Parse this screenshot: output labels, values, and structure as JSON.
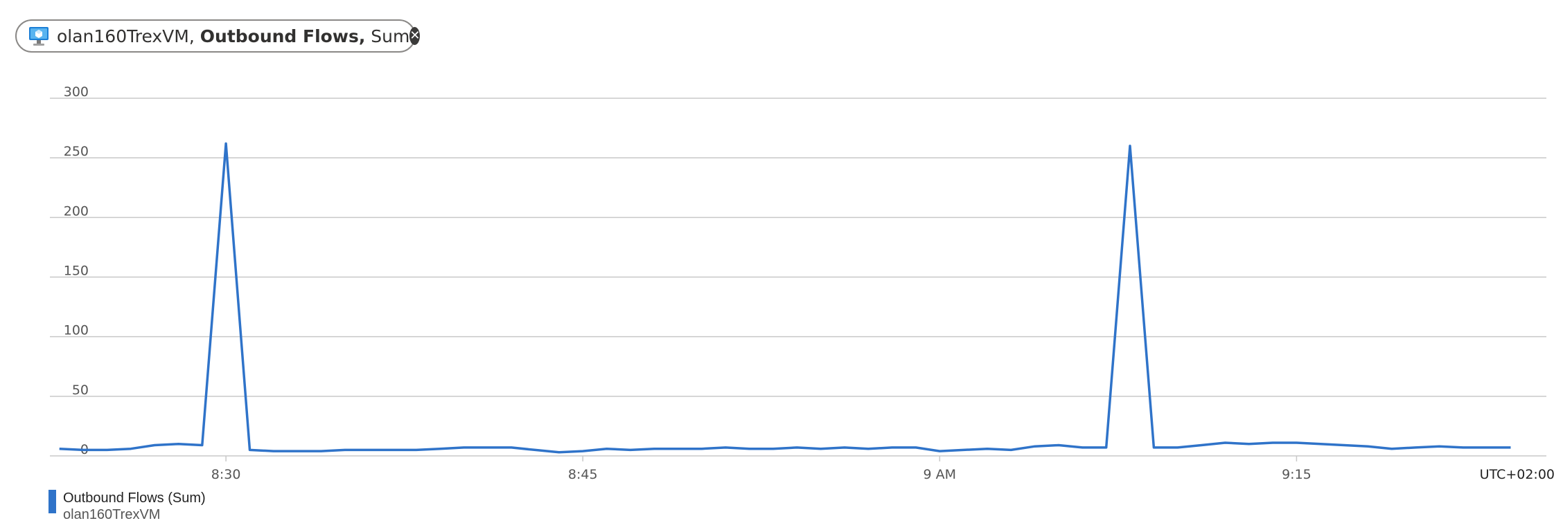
{
  "pill": {
    "resource": "olan160TrexVM,",
    "metric": "Outbound Flows,",
    "aggregation": "Sum",
    "icon": "virtual-machine-icon",
    "close_icon": "close-icon"
  },
  "timezone": "UTC+02:00",
  "legend": {
    "label": "Outbound Flows (Sum)",
    "sublabel": "olan160TrexVM"
  },
  "colors": {
    "series": "#2f73c9",
    "grid": "#c8c8c8",
    "axis_text": "#555555"
  },
  "chart_data": {
    "type": "line",
    "y_ticks": [
      "0",
      "50",
      "100",
      "150",
      "200",
      "250",
      "300"
    ],
    "ylim": [
      0,
      300
    ],
    "x_ticks": [
      {
        "label": "8:30",
        "minute": 30
      },
      {
        "label": "8:45",
        "minute": 45
      },
      {
        "label": "9 AM",
        "minute": 60
      },
      {
        "label": "9:15",
        "minute": 75
      }
    ],
    "x_minutes_range": [
      22.6,
      85.5
    ],
    "grid": true,
    "legend_position": "bottom-left",
    "series": [
      {
        "name": "Outbound Flows (Sum)",
        "x_minutes": [
          23,
          24,
          25,
          26,
          27,
          28,
          29,
          30,
          31,
          32,
          33,
          34,
          35,
          36,
          37,
          38,
          39,
          40,
          41,
          42,
          43,
          44,
          45,
          46,
          47,
          48,
          49,
          50,
          51,
          52,
          53,
          54,
          55,
          56,
          57,
          58,
          59,
          60,
          61,
          62,
          63,
          64,
          65,
          66,
          67,
          68,
          69,
          70,
          71,
          72,
          73,
          74,
          75,
          76,
          77,
          78,
          79,
          80,
          81,
          82,
          83,
          84
        ],
        "values": [
          6,
          5,
          5,
          6,
          9,
          10,
          9,
          262,
          5,
          4,
          4,
          4,
          5,
          5,
          5,
          5,
          6,
          7,
          7,
          7,
          5,
          3,
          4,
          6,
          5,
          6,
          6,
          6,
          7,
          6,
          6,
          7,
          6,
          7,
          6,
          7,
          7,
          4,
          5,
          6,
          5,
          8,
          9,
          7,
          7,
          260,
          7,
          7,
          9,
          11,
          10,
          11,
          11,
          10,
          9,
          8,
          6,
          7,
          8,
          7,
          7,
          7
        ]
      }
    ]
  }
}
